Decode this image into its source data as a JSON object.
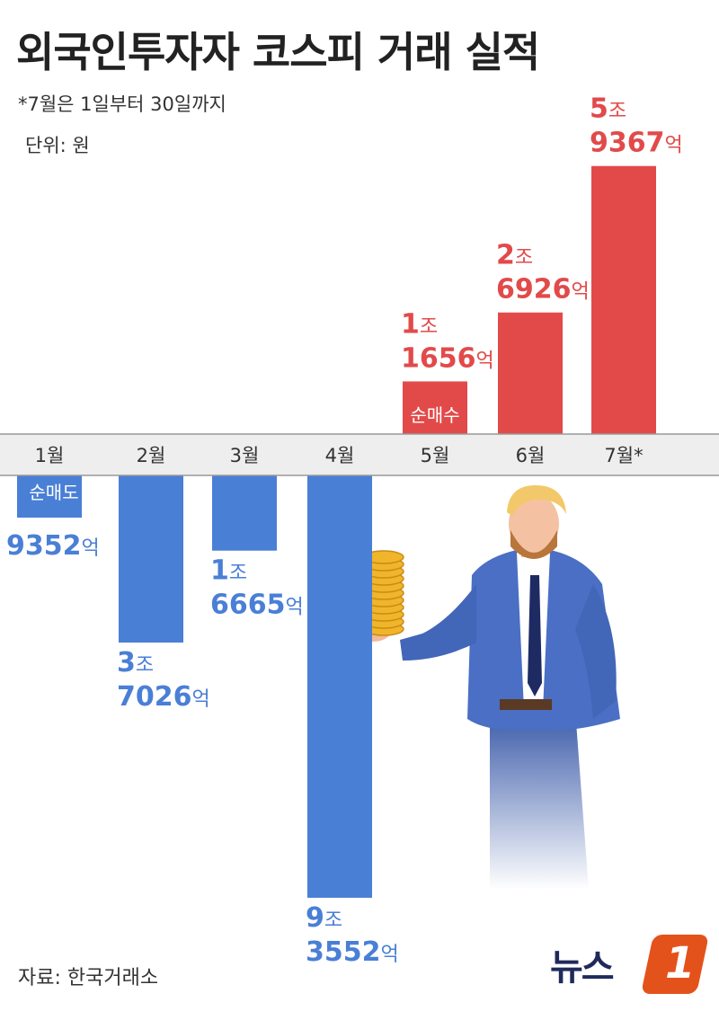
{
  "header": {
    "title": "외국인투자자 코스피 거래 실적",
    "note": "*7월은 1일부터 30일까지",
    "unit": "단위: 원"
  },
  "footer": {
    "source": "자료: 한국거래소",
    "logo_text": "뉴스",
    "logo_mark": "1"
  },
  "colors": {
    "buy": "#e24a4a",
    "sell": "#4a7fd6",
    "axis_band": "#eeeeee"
  },
  "chart_data": {
    "type": "bar",
    "title": "외국인투자자 코스피 거래 실적",
    "unit": "억원",
    "categories": [
      "1월",
      "2월",
      "3월",
      "4월",
      "5월",
      "6월",
      "7월*"
    ],
    "values": [
      -9352,
      -37026,
      -16665,
      -93552,
      11656,
      26926,
      59367
    ],
    "labels": [
      [
        "9352억"
      ],
      [
        "3조",
        "7026억"
      ],
      [
        "1조",
        "6665억"
      ],
      [
        "9조",
        "3552억"
      ],
      [
        "1조",
        "1656억"
      ],
      [
        "2조",
        "6926억"
      ],
      [
        "5조",
        "9367억"
      ]
    ],
    "annotations": {
      "sell_tag": "순매도",
      "buy_tag": "순매수"
    },
    "grid": false,
    "legend": "none"
  }
}
